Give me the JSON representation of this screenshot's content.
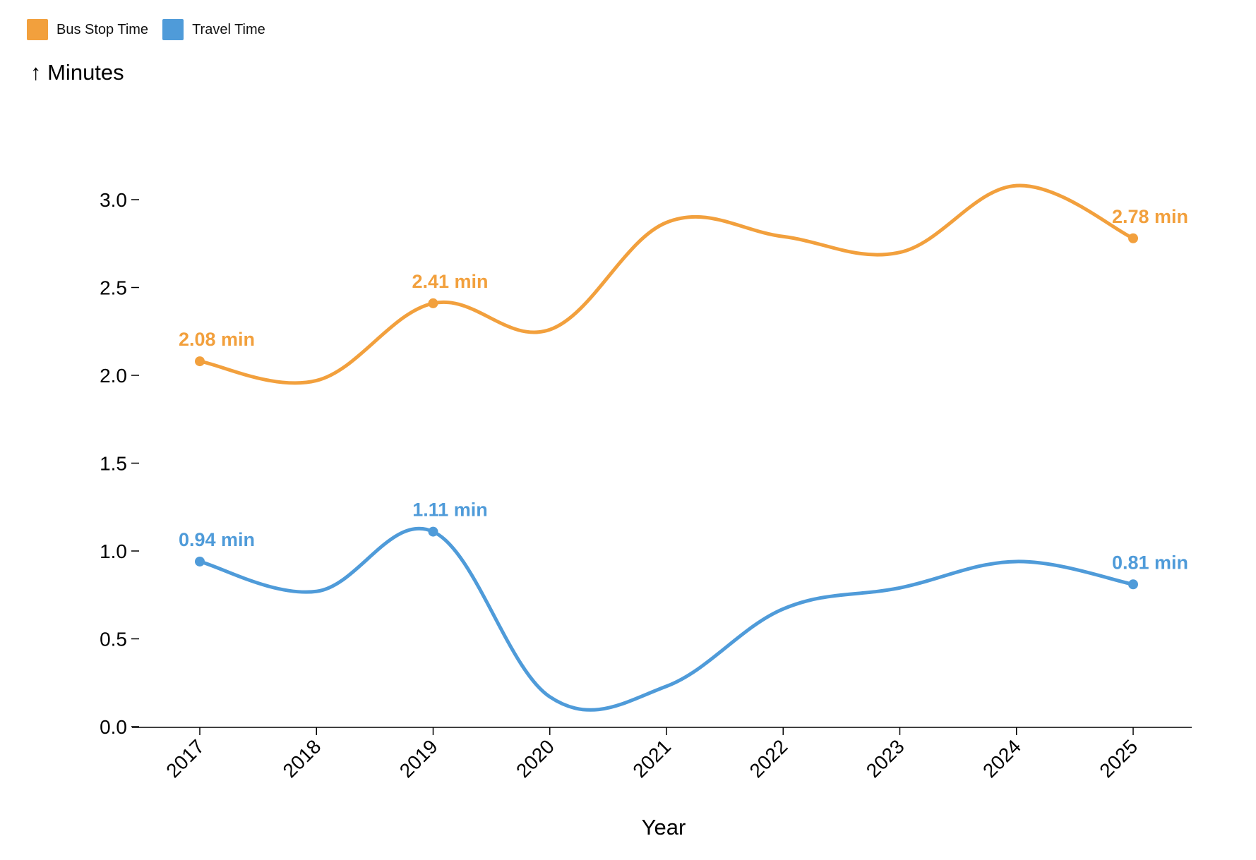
{
  "chart_data": {
    "type": "line",
    "x": [
      "2017",
      "2018",
      "2019",
      "2020",
      "2021",
      "2022",
      "2023",
      "2024",
      "2025"
    ],
    "series": [
      {
        "name": "Bus Stop Time",
        "color": "#f2a03d",
        "values": [
          2.08,
          1.97,
          2.41,
          2.26,
          2.87,
          2.79,
          2.7,
          3.08,
          2.78
        ],
        "labels": [
          {
            "index": 0,
            "text": "2.08 min"
          },
          {
            "index": 2,
            "text": "2.41 min"
          },
          {
            "index": 8,
            "text": "2.78 min"
          }
        ]
      },
      {
        "name": "Travel Time",
        "color": "#4f9bd9",
        "values": [
          0.94,
          0.77,
          1.11,
          0.17,
          0.23,
          0.67,
          0.79,
          0.94,
          0.81
        ],
        "labels": [
          {
            "index": 0,
            "text": "0.94 min"
          },
          {
            "index": 2,
            "text": "1.11 min"
          },
          {
            "index": 8,
            "text": "0.81 min"
          }
        ]
      }
    ],
    "xlabel": "Year",
    "ylabel": "↑ Minutes",
    "ylim": [
      0,
      3.3
    ],
    "yticks": [
      "0.0",
      "0.5",
      "1.0",
      "1.5",
      "2.0",
      "2.5",
      "3.0"
    ],
    "grid": false,
    "legend": "top-left"
  }
}
